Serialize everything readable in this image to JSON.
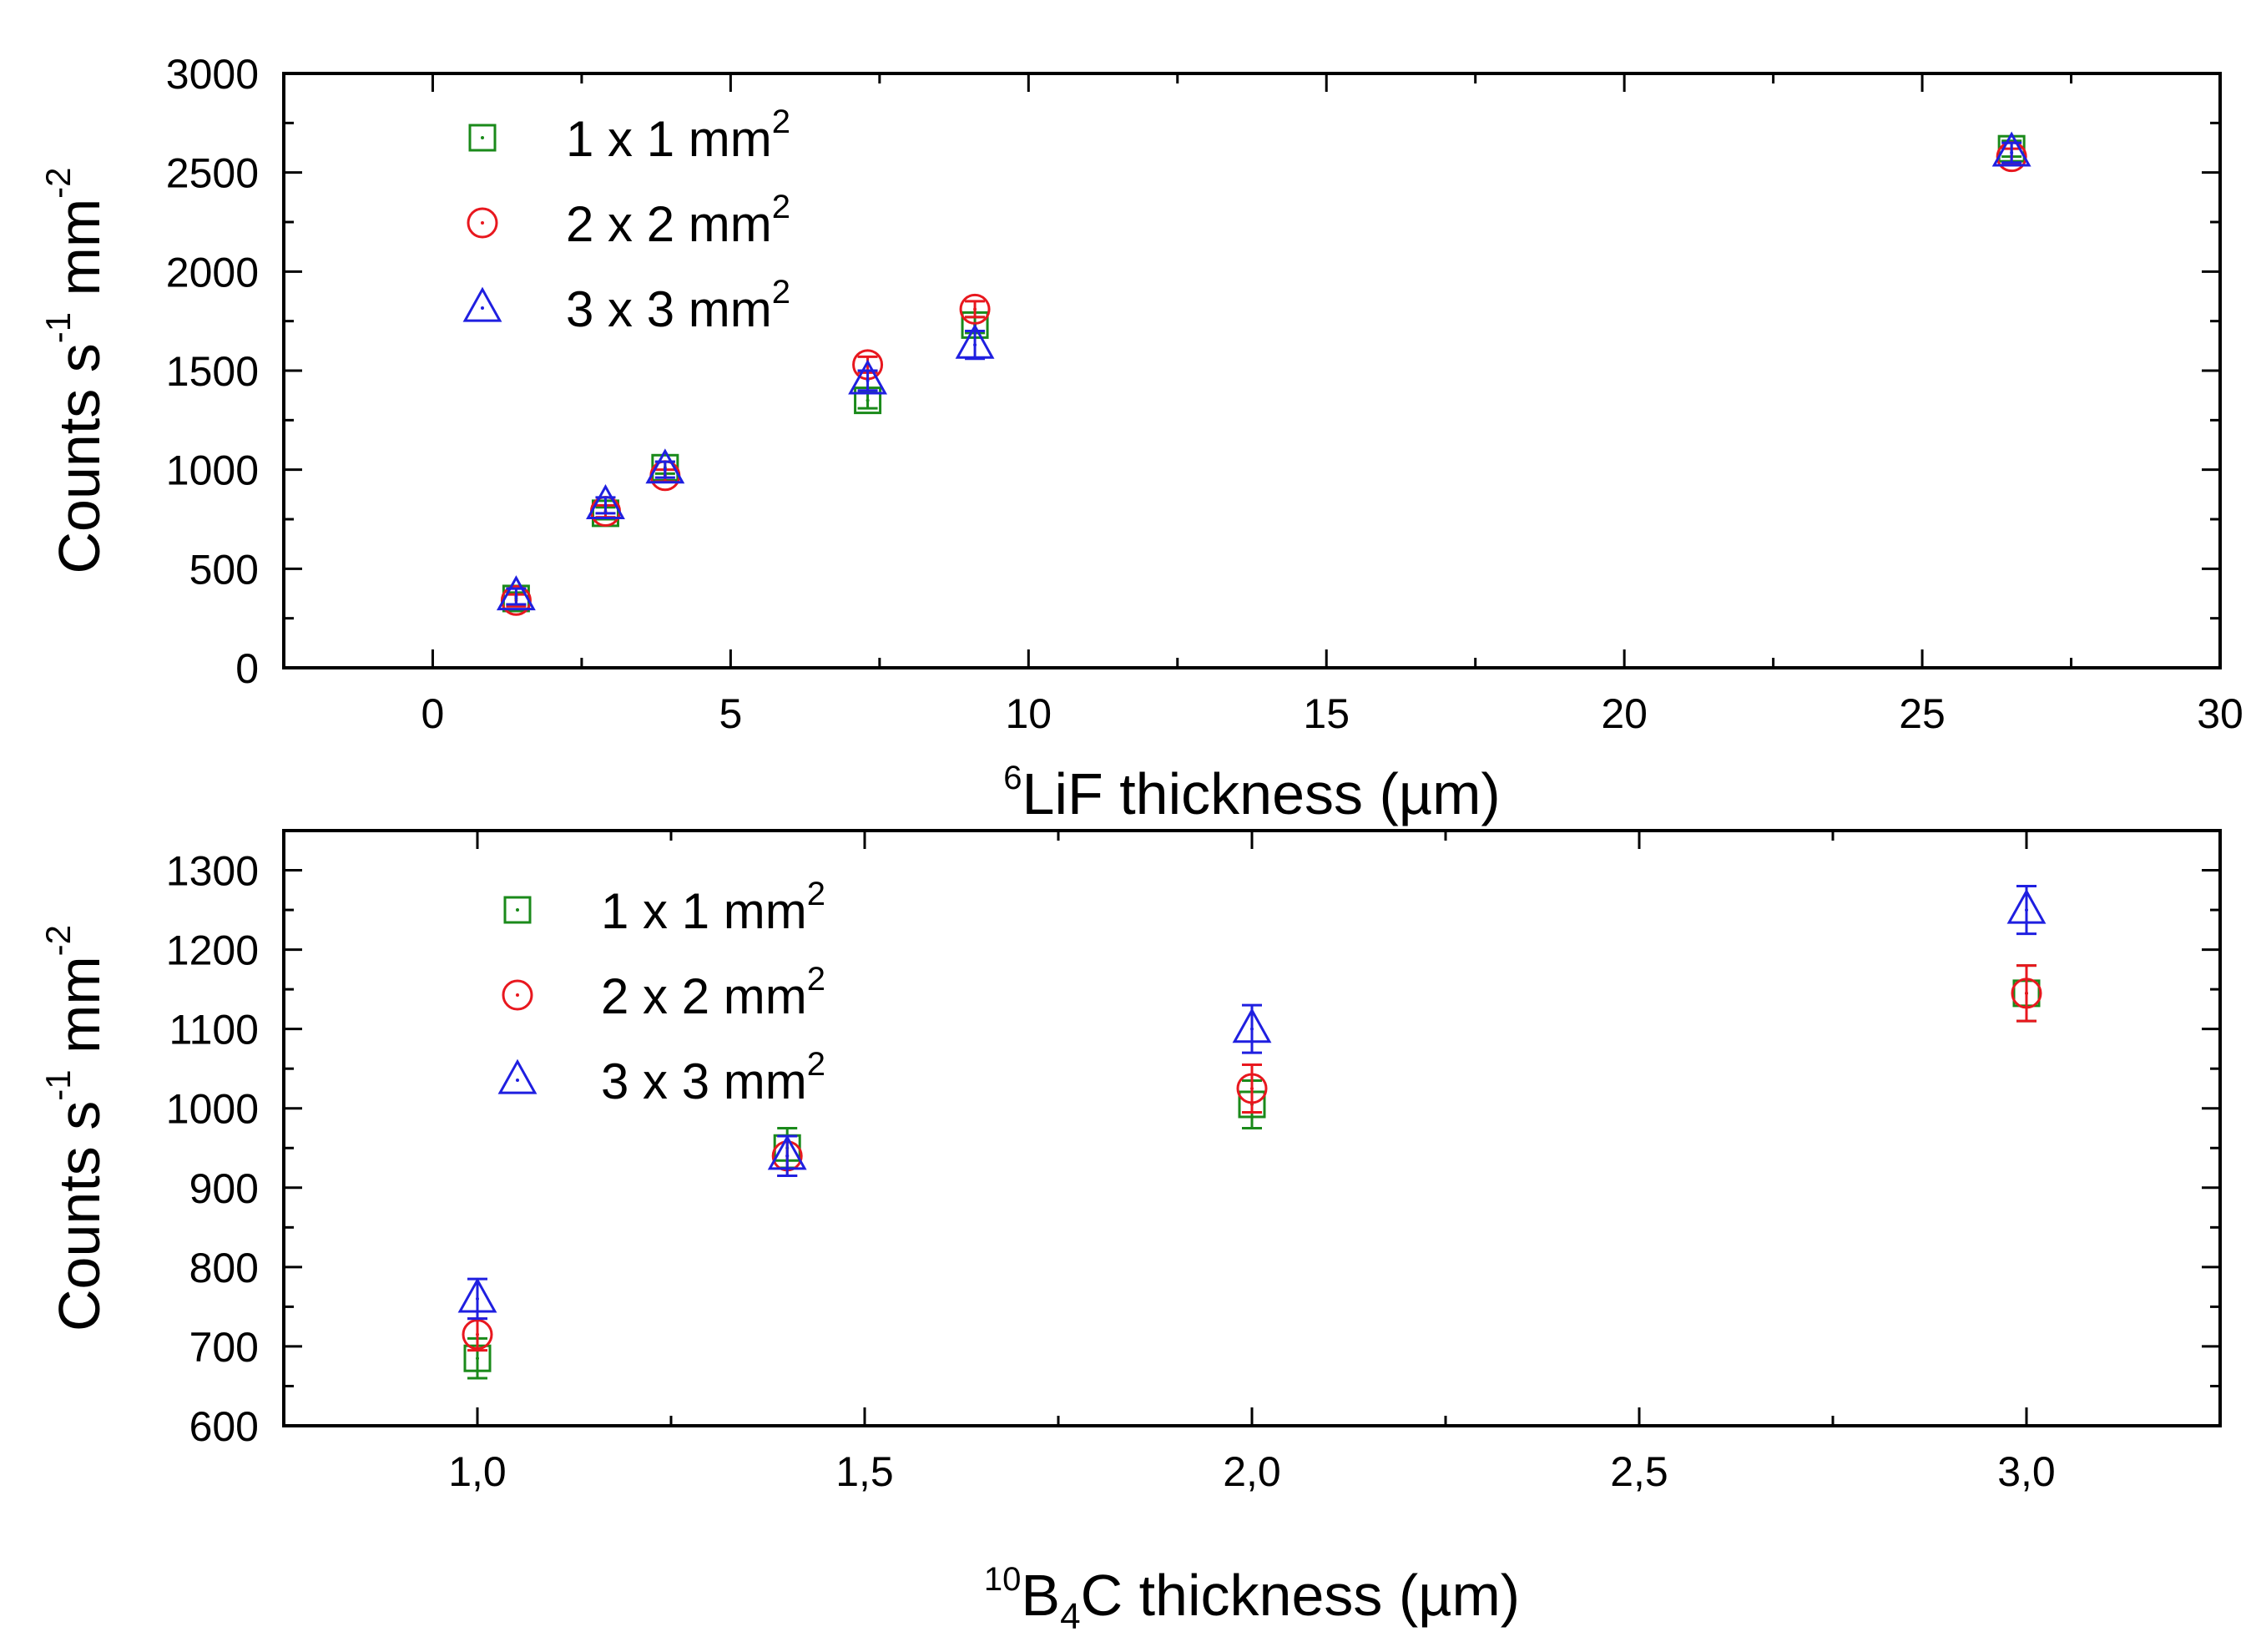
{
  "chart_data": [
    {
      "type": "scatter",
      "xlabel_super": "6",
      "xlabel_main": "LiF thickness (µm)",
      "ylabel_main": "Counts s",
      "ylabel_sup1": "-1",
      "ylabel_mid": " mm",
      "ylabel_sup2": "-2",
      "xlim": [
        -2.5,
        30
      ],
      "ylim": [
        0,
        3000
      ],
      "xticks": [
        0,
        5,
        10,
        15,
        20,
        25,
        30
      ],
      "xtick_labels": [
        "0",
        "5",
        "10",
        "15",
        "20",
        "25",
        "30"
      ],
      "xminor": [
        -2.5,
        2.5,
        7.5,
        12.5,
        17.5,
        22.5,
        27.5
      ],
      "yticks": [
        0,
        500,
        1000,
        1500,
        2000,
        2500,
        3000
      ],
      "ytick_labels": [
        "0",
        "500",
        "1000",
        "1500",
        "2000",
        "2500",
        "3000"
      ],
      "legend_position": "top-left",
      "series": [
        {
          "name": "1 x 1 mm",
          "sup": "2",
          "marker": "square",
          "color": "#1a8a1a",
          "x": [
            1.4,
            2.9,
            3.9,
            7.3,
            9.1,
            26.5
          ],
          "y": [
            350,
            780,
            1010,
            1350,
            1730,
            2620
          ],
          "err": [
            30,
            30,
            30,
            40,
            40,
            40
          ]
        },
        {
          "name": "2 x 2 mm",
          "sup": "2",
          "marker": "circle",
          "color": "#e8171e",
          "x": [
            1.4,
            2.9,
            3.9,
            7.3,
            9.1,
            26.5
          ],
          "y": [
            340,
            790,
            970,
            1530,
            1810,
            2580
          ],
          "err": [
            30,
            30,
            30,
            40,
            40,
            40
          ]
        },
        {
          "name": "3 x 3 mm",
          "sup": "2",
          "marker": "triangle",
          "color": "#1f1fe0",
          "x": [
            1.4,
            2.9,
            3.9,
            7.3,
            9.1,
            26.5
          ],
          "y": [
            360,
            820,
            1000,
            1450,
            1630,
            2600
          ],
          "err": [
            40,
            40,
            40,
            50,
            70,
            50
          ]
        }
      ]
    },
    {
      "type": "scatter",
      "xlabel_super": "10",
      "xlabel_pre": "B",
      "xlabel_sub": "4",
      "xlabel_main": "C thickness (µm)",
      "ylabel_main": "Counts s",
      "ylabel_sup1": "-1",
      "ylabel_mid": " mm",
      "ylabel_sup2": "-2",
      "xlim": [
        0.75,
        3.25
      ],
      "ylim": [
        600,
        1350
      ],
      "xticks": [
        1.0,
        1.5,
        2.0,
        2.5,
        3.0
      ],
      "xtick_labels": [
        "1,0",
        "1,5",
        "2,0",
        "2,5",
        "3,0"
      ],
      "xminor": [
        0.75,
        1.25,
        1.75,
        2.25,
        2.75,
        3.25
      ],
      "yticks": [
        600,
        700,
        800,
        900,
        1000,
        1100,
        1200,
        1300
      ],
      "ytick_labels": [
        "600",
        "700",
        "800",
        "900",
        "1000",
        "1100",
        "1200",
        "1300"
      ],
      "legend_position": "top-left",
      "series": [
        {
          "name": "1 x 1 mm",
          "sup": "2",
          "marker": "square",
          "color": "#1a8a1a",
          "x": [
            1.0,
            1.4,
            2.0,
            3.0
          ],
          "y": [
            685,
            950,
            1005,
            1145
          ],
          "err": [
            25,
            25,
            30,
            35
          ]
        },
        {
          "name": "2 x 2 mm",
          "sup": "2",
          "marker": "circle",
          "color": "#e8171e",
          "x": [
            1.0,
            1.4,
            2.0,
            3.0
          ],
          "y": [
            715,
            940,
            1025,
            1145
          ],
          "err": [
            20,
            25,
            30,
            35
          ]
        },
        {
          "name": "3 x 3 mm",
          "sup": "2",
          "marker": "triangle",
          "color": "#1f1fe0",
          "x": [
            1.0,
            1.4,
            2.0,
            3.0
          ],
          "y": [
            760,
            940,
            1100,
            1250
          ],
          "err": [
            25,
            25,
            30,
            30
          ]
        }
      ]
    }
  ]
}
